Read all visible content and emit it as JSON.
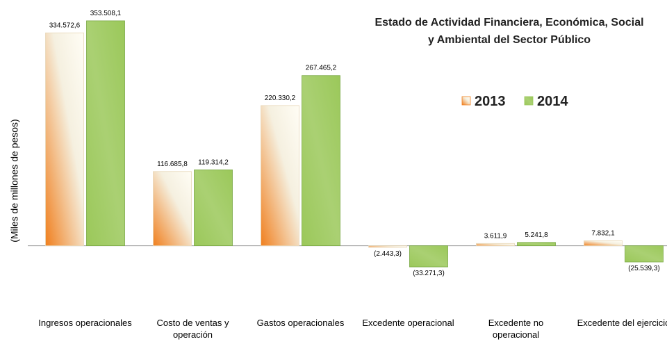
{
  "chart_data": {
    "type": "bar",
    "title": "Estado de Actividad Financiera, Económica, Social y Ambiental del Sector Público",
    "y_label": "(Miles de millones de pesos)",
    "categories": [
      "Ingresos operacionales",
      "Costo de ventas y operación",
      "Gastos operacionales",
      "Excedente operacional",
      "Excedente no operacional",
      "Excedente del ejercicio"
    ],
    "series": [
      {
        "name": "2013",
        "color": "#f07f1e",
        "values": [
          334572.6,
          116685.8,
          220330.2,
          -2443.3,
          3611.9,
          7832.1
        ],
        "value_labels": [
          "334.572,6",
          "116.685,8",
          "220.330,2",
          "(2.443,3)",
          "3.611,9",
          "7.832,1"
        ]
      },
      {
        "name": "2014",
        "color": "#9bc85a",
        "values": [
          353508.1,
          119314.2,
          267465.2,
          -33271.3,
          5241.8,
          -25539.3
        ],
        "value_labels": [
          "353.508,1",
          "119.314,2",
          "267.465,2",
          "(33.271,3)",
          "5.241,8",
          "(25.539,3)"
        ]
      }
    ],
    "ylim": [
      -90000,
      360000
    ],
    "legend": "upper right"
  }
}
